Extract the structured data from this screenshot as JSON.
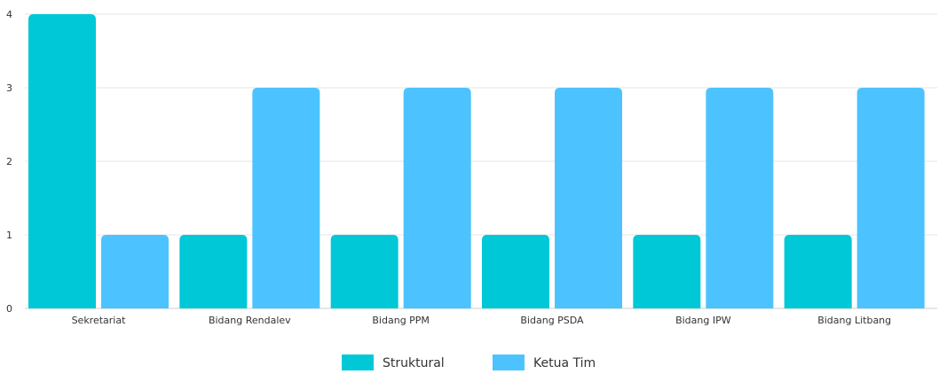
{
  "chart_data": {
    "type": "bar",
    "categories": [
      "Sekretariat",
      "Bidang Rendalev",
      "Bidang PPM",
      "Bidang PSDA",
      "Bidang IPW",
      "Bidang Litbang"
    ],
    "series": [
      {
        "name": "Struktural",
        "values": [
          4,
          1,
          1,
          1,
          1,
          1
        ],
        "color": "#00c8d7"
      },
      {
        "name": "Ketua Tim",
        "values": [
          1,
          3,
          3,
          3,
          3,
          3
        ],
        "color": "#4cc3ff"
      }
    ],
    "ylim": [
      0,
      4
    ],
    "yticks": [
      "0",
      "1",
      "2",
      "3",
      "4"
    ],
    "grid": true,
    "legend": "bottom-center"
  }
}
